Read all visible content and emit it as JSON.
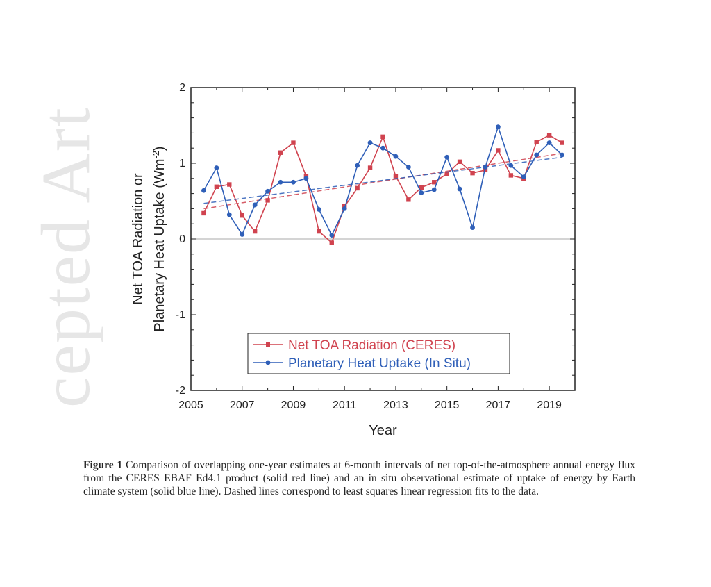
{
  "watermark": "cepted Art",
  "chart_data": {
    "type": "line",
    "title": "",
    "xlabel": "Year",
    "ylabel_line1": "Net TOA Radiation or",
    "ylabel_line2": "Planetary Heat Uptake (Wm",
    "ylabel_sup": "-2",
    "ylabel_end": ")",
    "xlim": [
      2005,
      2020
    ],
    "ylim": [
      -2,
      2
    ],
    "xticks": [
      2005,
      2007,
      2009,
      2011,
      2013,
      2015,
      2017,
      2019
    ],
    "yticks": [
      -2,
      -1,
      0,
      1,
      2
    ],
    "legend_position": "bottom-right",
    "x": [
      2005.5,
      2006,
      2006.5,
      2007,
      2007.5,
      2008,
      2008.5,
      2009,
      2009.5,
      2010,
      2010.5,
      2011,
      2011.5,
      2012,
      2012.5,
      2013,
      2013.5,
      2014,
      2014.5,
      2015,
      2015.5,
      2016,
      2016.5,
      2017,
      2017.5,
      2018,
      2018.5,
      2019,
      2019.5
    ],
    "series": [
      {
        "name": "Net TOA Radiation (CERES)",
        "color": "#d0434f",
        "marker": "square",
        "values": [
          0.34,
          0.69,
          0.72,
          0.31,
          0.1,
          0.51,
          1.14,
          1.27,
          0.83,
          0.1,
          -0.05,
          0.43,
          0.67,
          0.94,
          1.35,
          0.83,
          0.52,
          0.68,
          0.75,
          0.86,
          1.02,
          0.87,
          0.91,
          1.17,
          0.84,
          0.8,
          1.28,
          1.37,
          1.27
        ],
        "trend": [
          0.4,
          1.13
        ]
      },
      {
        "name": "Planetary Heat Uptake (In Situ)",
        "color": "#2f5fb8",
        "marker": "circle",
        "values": [
          0.64,
          0.94,
          0.32,
          0.06,
          0.45,
          0.63,
          0.75,
          0.75,
          0.8,
          0.39,
          0.05,
          0.4,
          0.97,
          1.27,
          1.2,
          1.09,
          0.95,
          0.61,
          0.65,
          1.08,
          0.66,
          0.15,
          0.95,
          1.48,
          0.97,
          0.82,
          1.11,
          1.27,
          1.11
        ],
        "trend": [
          0.47,
          1.08
        ]
      }
    ]
  },
  "caption": {
    "label": "Figure 1",
    "text": " Comparison of overlapping one-year estimates at 6-month intervals of net top-of-the-atmosphere annual energy flux from the CERES EBAF Ed4.1 product (solid red line) and an in situ observational estimate of uptake of energy by Earth climate system (solid blue line). Dashed lines correspond to least squares linear regression fits to the data."
  }
}
